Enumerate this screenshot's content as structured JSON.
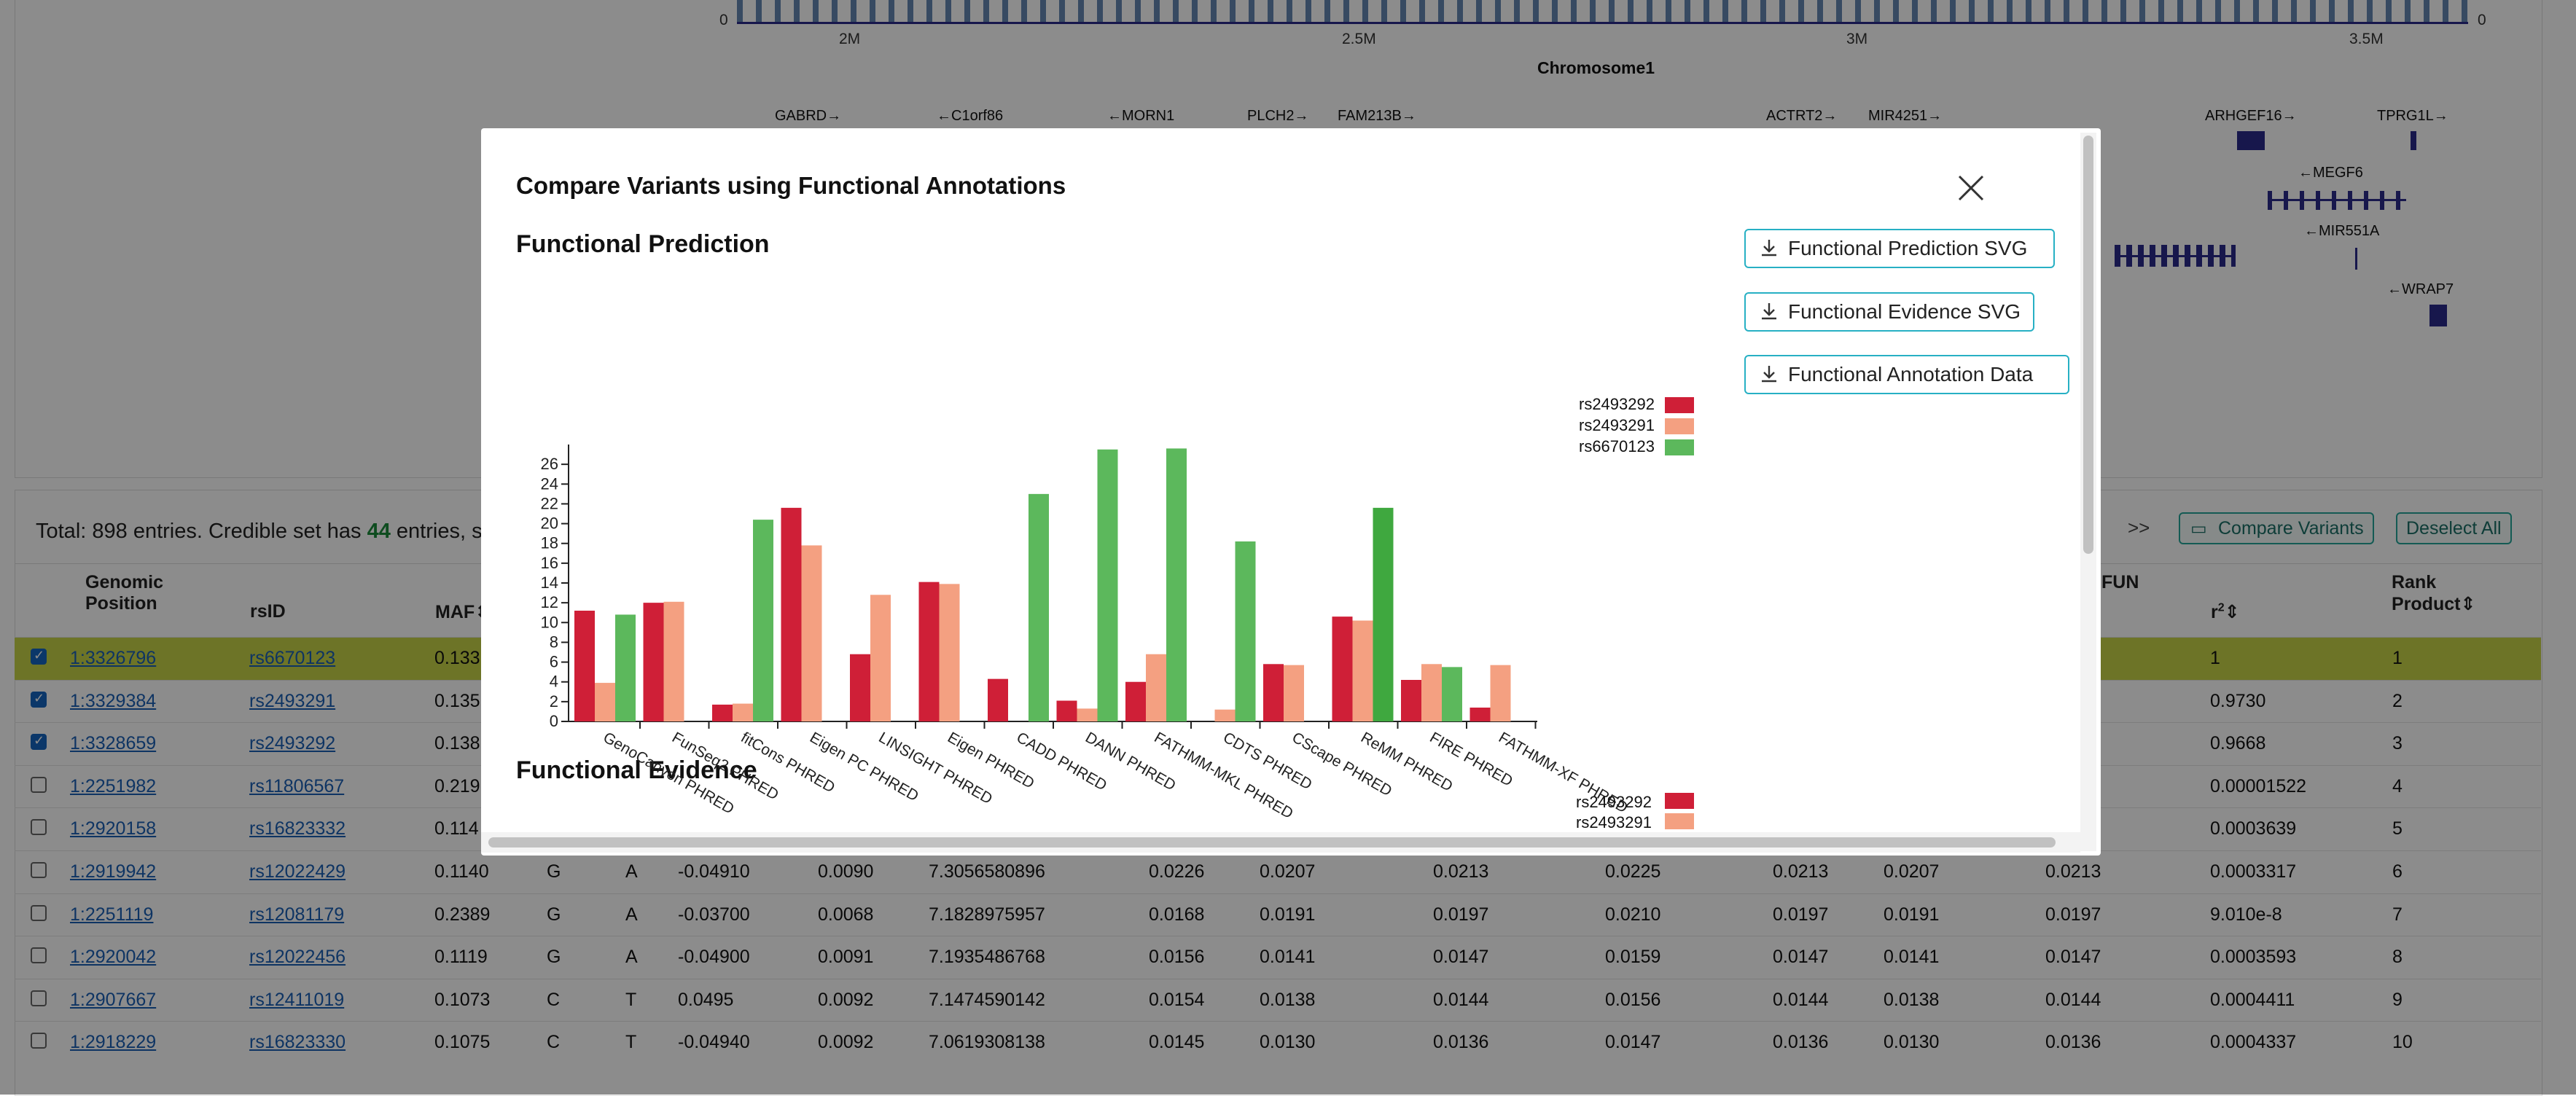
{
  "background": {
    "axis": {
      "zero_left": "0",
      "zero_right": "0",
      "ticks": [
        "2M",
        "2.5M",
        "3M",
        "3.5M"
      ],
      "label": "Chromosome1"
    },
    "genes": [
      {
        "name": "GABRD→"
      },
      {
        "name": "←C1orf86"
      },
      {
        "name": "←MORN1"
      },
      {
        "name": "PLCH2→"
      },
      {
        "name": "FAM213B→"
      },
      {
        "name": "ACTRT2→"
      },
      {
        "name": "MIR4251→"
      },
      {
        "name": "ARHGEF16→"
      },
      {
        "name": "TPRG1L→"
      },
      {
        "name": "←MEGF6"
      },
      {
        "name": "←MIR551A"
      },
      {
        "name": "←WRAP7"
      }
    ],
    "summary": {
      "prefix": "Total: 898 entries. Credible set has ",
      "count": "44",
      "suffix": " entries, s"
    },
    "pager_next": ">>",
    "compare_button": "Compare Variants",
    "deselect_button": "Deselect All",
    "headers": {
      "position_line1": "Genomic",
      "position_line2": "Position",
      "rsid": "rsID",
      "maf": "MAF",
      "fun": "FUN",
      "r2": "r",
      "rank_line1": "Rank",
      "rank_line2": "Product"
    },
    "rows": [
      {
        "checked": true,
        "highlight": true,
        "pos": "1:3326796",
        "rsid": "rs6670123",
        "maf": "0.133",
        "ref": "",
        "alt": "",
        "beta": "",
        "se": "",
        "score": "",
        "c1": "",
        "c2": "",
        "c3": "",
        "c4": "",
        "c5": "",
        "c6": "",
        "c7": "",
        "r2": "1",
        "rank": "1"
      },
      {
        "checked": true,
        "highlight": false,
        "pos": "1:3329384",
        "rsid": "rs2493291",
        "maf": "0.135",
        "ref": "",
        "alt": "",
        "beta": "",
        "se": "",
        "score": "",
        "c1": "",
        "c2": "",
        "c3": "",
        "c4": "",
        "c5": "",
        "c6": "",
        "c7": "",
        "r2": "0.9730",
        "rank": "2"
      },
      {
        "checked": true,
        "highlight": false,
        "pos": "1:3328659",
        "rsid": "rs2493292",
        "maf": "0.138",
        "ref": "",
        "alt": "",
        "beta": "",
        "se": "",
        "score": "",
        "c1": "",
        "c2": "",
        "c3": "",
        "c4": "",
        "c5": "",
        "c6": "",
        "c7": "",
        "r2": "0.9668",
        "rank": "3"
      },
      {
        "checked": false,
        "highlight": false,
        "pos": "1:2251982",
        "rsid": "rs11806567",
        "maf": "0.219",
        "ref": "",
        "alt": "",
        "beta": "",
        "se": "",
        "score": "",
        "c1": "",
        "c2": "",
        "c3": "",
        "c4": "",
        "c5": "",
        "c6": "",
        "c7": "",
        "r2": "0.00001522",
        "rank": "4"
      },
      {
        "checked": false,
        "highlight": false,
        "pos": "1:2920158",
        "rsid": "rs16823332",
        "maf": "0.114",
        "ref": "",
        "alt": "",
        "beta": "",
        "se": "",
        "score": "",
        "c1": "",
        "c2": "",
        "c3": "",
        "c4": "",
        "c5": "",
        "c6": "",
        "c7": "",
        "r2": "0.0003639",
        "rank": "5"
      },
      {
        "checked": false,
        "highlight": false,
        "pos": "1:2919942",
        "rsid": "rs12022429",
        "maf": "0.1140",
        "ref": "G",
        "alt": "A",
        "beta": "-0.04910",
        "se": "0.0090",
        "score": "7.3056580896",
        "c1": "0.0226",
        "c2": "0.0207",
        "c3": "0.0213",
        "c4": "0.0225",
        "c5": "0.0213",
        "c6": "0.0207",
        "c7": "0.0213",
        "r2": "0.0003317",
        "rank": "6"
      },
      {
        "checked": false,
        "highlight": false,
        "pos": "1:2251119",
        "rsid": "rs12081179",
        "maf": "0.2389",
        "ref": "G",
        "alt": "A",
        "beta": "-0.03700",
        "se": "0.0068",
        "score": "7.1828975957",
        "c1": "0.0168",
        "c2": "0.0191",
        "c3": "0.0197",
        "c4": "0.0210",
        "c5": "0.0197",
        "c6": "0.0191",
        "c7": "0.0197",
        "r2": "9.010e-8",
        "rank": "7"
      },
      {
        "checked": false,
        "highlight": false,
        "pos": "1:2920042",
        "rsid": "rs12022456",
        "maf": "0.1119",
        "ref": "G",
        "alt": "A",
        "beta": "-0.04900",
        "se": "0.0091",
        "score": "7.1935486768",
        "c1": "0.0156",
        "c2": "0.0141",
        "c3": "0.0147",
        "c4": "0.0159",
        "c5": "0.0147",
        "c6": "0.0141",
        "c7": "0.0147",
        "r2": "0.0003593",
        "rank": "8"
      },
      {
        "checked": false,
        "highlight": false,
        "pos": "1:2907667",
        "rsid": "rs12411019",
        "maf": "0.1073",
        "ref": "C",
        "alt": "T",
        "beta": "0.0495",
        "se": "0.0092",
        "score": "7.1474590142",
        "c1": "0.0154",
        "c2": "0.0138",
        "c3": "0.0144",
        "c4": "0.0156",
        "c5": "0.0144",
        "c6": "0.0138",
        "c7": "0.0144",
        "r2": "0.0004411",
        "rank": "9"
      },
      {
        "checked": false,
        "highlight": false,
        "pos": "1:2918229",
        "rsid": "rs16823330",
        "maf": "0.1075",
        "ref": "C",
        "alt": "T",
        "beta": "-0.04940",
        "se": "0.0092",
        "score": "7.0619308138",
        "c1": "0.0145",
        "c2": "0.0130",
        "c3": "0.0136",
        "c4": "0.0147",
        "c5": "0.0136",
        "c6": "0.0130",
        "c7": "0.0136",
        "r2": "0.0004337",
        "rank": "10"
      }
    ]
  },
  "modal": {
    "title": "Compare Variants using Functional Annotations",
    "section1_title": "Functional Prediction",
    "section2_title": "Functional Evidence",
    "buttons": {
      "prediction_svg": "Functional Prediction SVG",
      "evidence_svg": "Functional Evidence SVG",
      "annotation_data": "Functional Annotation Data"
    },
    "legend2": [
      "rs2493292",
      "rs2493291"
    ]
  },
  "colors": {
    "rs2493292": "#cf1f37",
    "rs2493291": "#f4a081",
    "rs6670123": "#5cb85c",
    "rs6670123_dark": "#3fa83f",
    "highlight_row": "#c6d447",
    "button_border": "#27b0c4"
  },
  "chart_data": {
    "type": "bar",
    "title": "Functional Prediction",
    "categories": [
      "GenoCanyon PHRED",
      "FunSeq2 PHRED",
      "fitCons PHRED",
      "Eigen PC PHRED",
      "LINSIGHT PHRED",
      "Eigen PHRED",
      "CADD PHRED",
      "DANN PHRED",
      "FATHMM-MKL PHRED",
      "CDTS PHRED",
      "CScape PHRED",
      "ReMM PHRED",
      "FIRE PHRED",
      "FATHMM-XF PHRED"
    ],
    "series": [
      {
        "name": "rs2493292",
        "values": [
          11.2,
          12,
          1.7,
          21.6,
          6.8,
          14.1,
          4.3,
          2.1,
          4.0,
          null,
          5.8,
          10.6,
          4.2,
          1.4
        ]
      },
      {
        "name": "rs2493291",
        "values": [
          3.9,
          12.1,
          1.8,
          17.8,
          12.8,
          13.9,
          null,
          1.3,
          6.8,
          1.2,
          5.7,
          10.2,
          5.8,
          5.7
        ]
      },
      {
        "name": "rs6670123",
        "values": [
          10.8,
          null,
          20.4,
          null,
          null,
          null,
          23.0,
          27.5,
          27.6,
          18.2,
          null,
          21.6,
          5.5,
          null
        ]
      }
    ],
    "yticks": [
      0,
      2,
      4,
      6,
      8,
      10,
      12,
      14,
      16,
      18,
      20,
      22,
      24,
      26
    ],
    "ylim": [
      0,
      28
    ],
    "legend_position": "top-right"
  }
}
